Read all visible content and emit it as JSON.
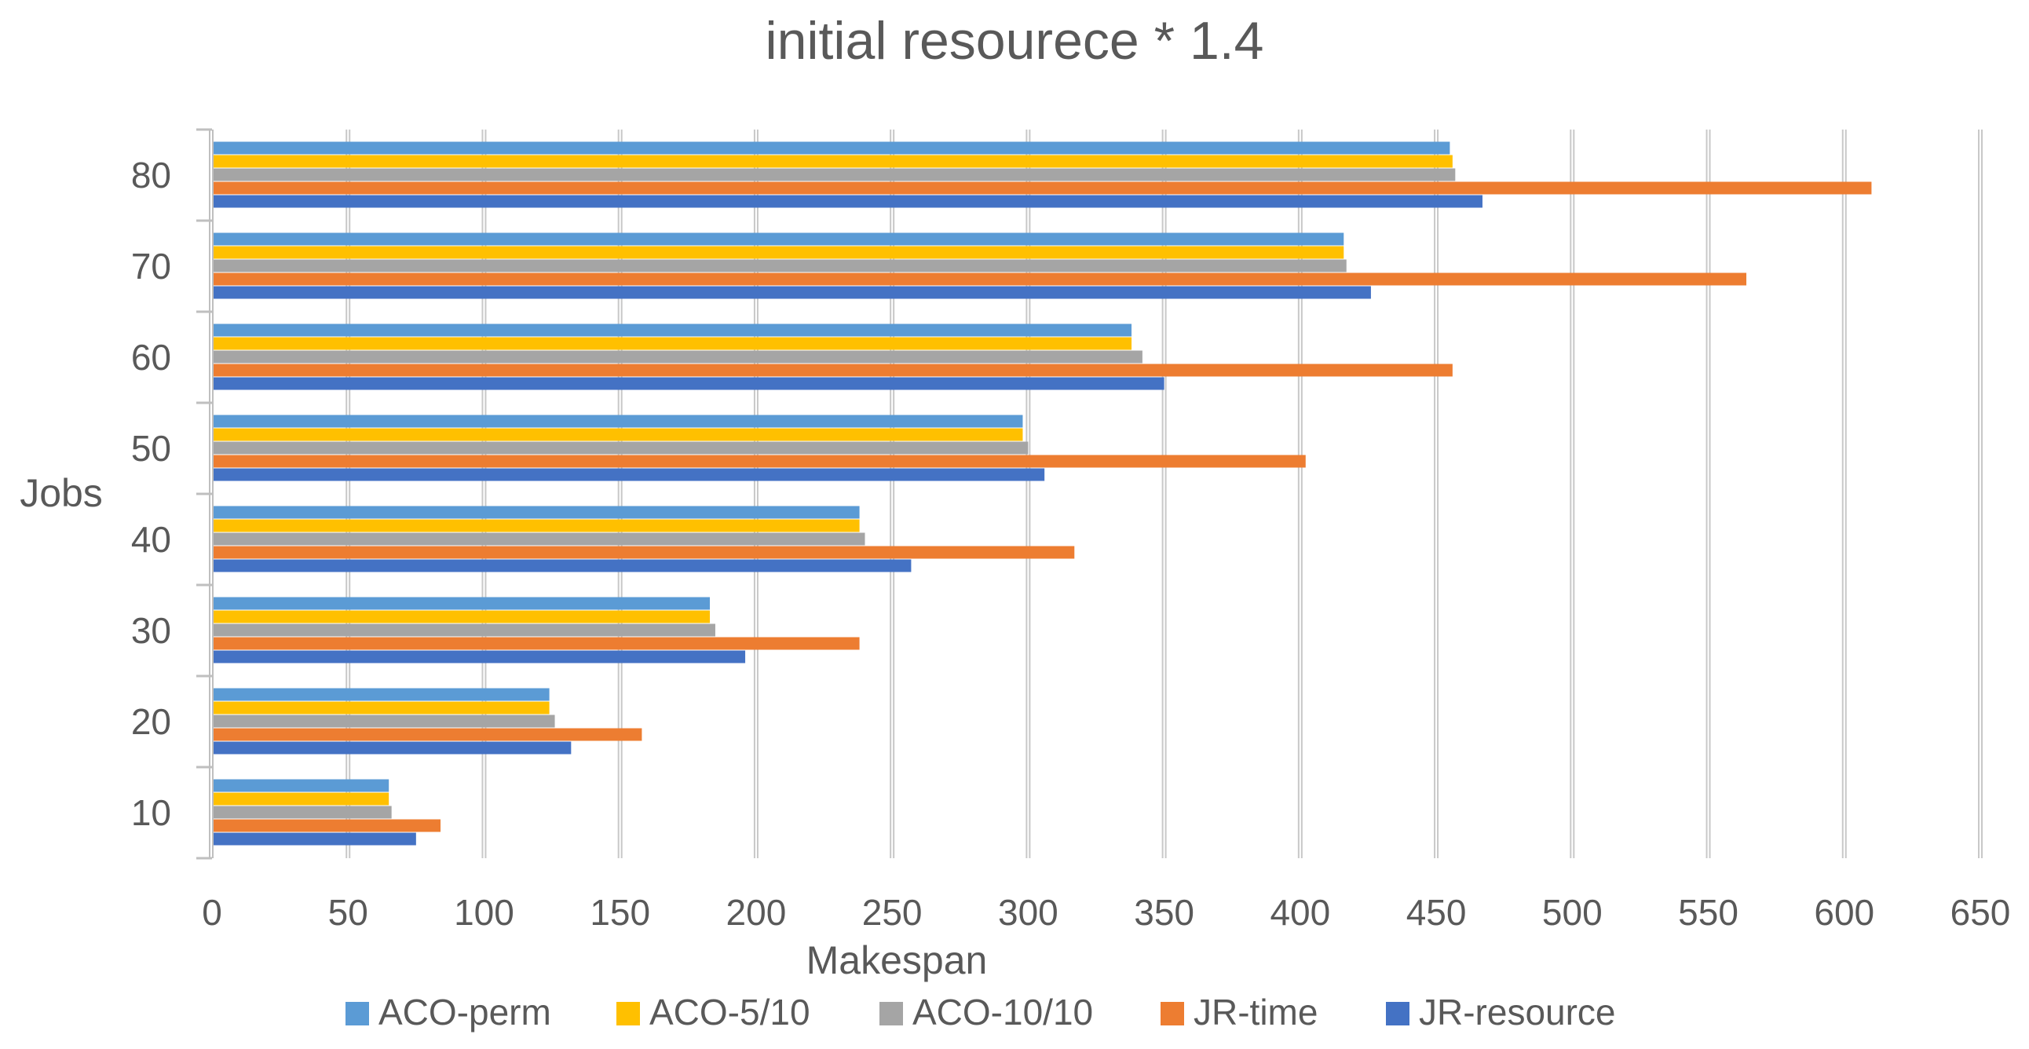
{
  "chart_data": {
    "type": "bar",
    "orientation": "horizontal",
    "title": "initial resourece * 1.4",
    "xlabel": "Makespan",
    "ylabel": "Jobs",
    "xlim": [
      0,
      650
    ],
    "xticks": [
      "0",
      "50",
      "100",
      "150",
      "200",
      "250",
      "300",
      "350",
      "400",
      "450",
      "500",
      "550",
      "600",
      "650"
    ],
    "grid": "vertical",
    "legend_position": "bottom",
    "categories": [
      "10",
      "20",
      "30",
      "40",
      "50",
      "60",
      "70",
      "80"
    ],
    "series": [
      {
        "name": "ACO-perm",
        "color": "#5B9BD5",
        "values": [
          65,
          124,
          183,
          238,
          298,
          338,
          416,
          455
        ]
      },
      {
        "name": "ACO-5/10",
        "color": "#FFC000",
        "values": [
          65,
          124,
          183,
          238,
          298,
          338,
          416,
          456
        ]
      },
      {
        "name": "ACO-10/10",
        "color": "#A5A5A5",
        "values": [
          66,
          126,
          185,
          240,
          300,
          342,
          417,
          457
        ]
      },
      {
        "name": "JR-time",
        "color": "#ED7D31",
        "values": [
          84,
          158,
          238,
          317,
          402,
          456,
          564,
          610
        ]
      },
      {
        "name": "JR-resource",
        "color": "#4472C4",
        "values": [
          75,
          132,
          196,
          257,
          306,
          350,
          426,
          467
        ]
      }
    ]
  }
}
